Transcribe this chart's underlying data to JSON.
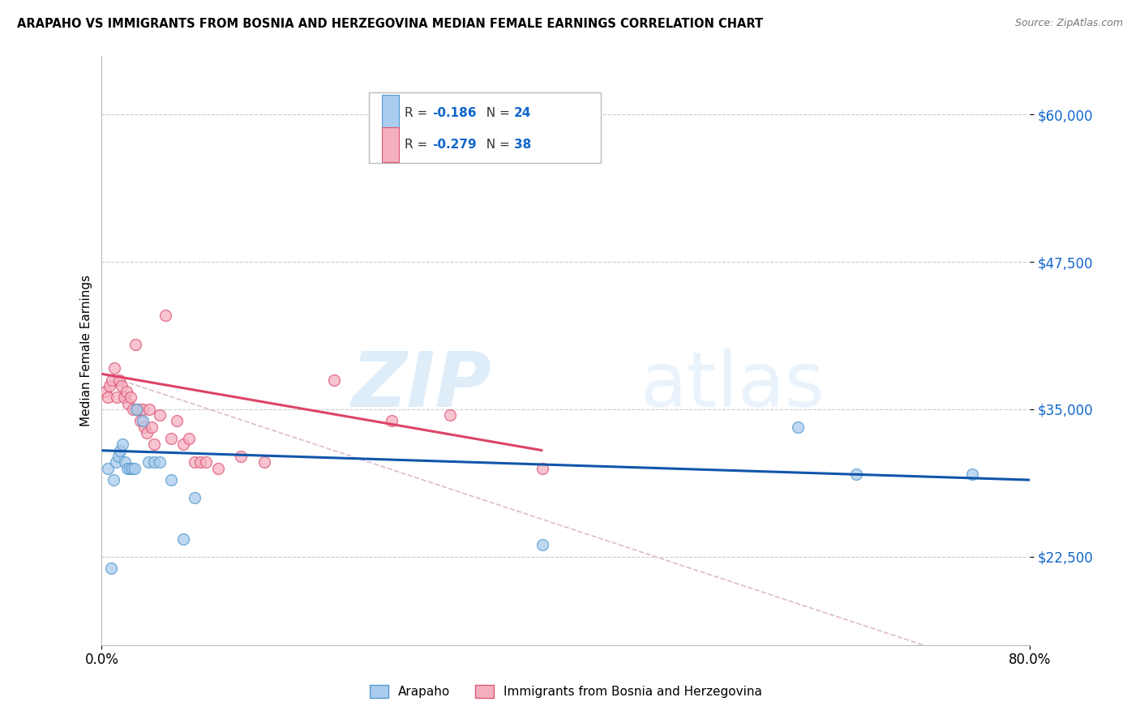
{
  "title": "ARAPAHO VS IMMIGRANTS FROM BOSNIA AND HERZEGOVINA MEDIAN FEMALE EARNINGS CORRELATION CHART",
  "source": "Source: ZipAtlas.com",
  "ylabel": "Median Female Earnings",
  "xlabel_ticks": [
    "0.0%",
    "80.0%"
  ],
  "ytick_labels": [
    "$22,500",
    "$35,000",
    "$47,500",
    "$60,000"
  ],
  "ytick_values": [
    22500,
    35000,
    47500,
    60000
  ],
  "ymin": 15000,
  "ymax": 65000,
  "xmin": 0.0,
  "xmax": 0.8,
  "watermark_zip": "ZIP",
  "watermark_atlas": "atlas",
  "arapaho_scatter": {
    "x": [
      0.005,
      0.008,
      0.01,
      0.012,
      0.014,
      0.016,
      0.018,
      0.02,
      0.022,
      0.024,
      0.026,
      0.028,
      0.03,
      0.035,
      0.04,
      0.045,
      0.05,
      0.06,
      0.07,
      0.08,
      0.38,
      0.6,
      0.65,
      0.75
    ],
    "y": [
      30000,
      21500,
      29000,
      30500,
      31000,
      31500,
      32000,
      30500,
      30000,
      30000,
      30000,
      30000,
      35000,
      34000,
      30500,
      30500,
      30500,
      29000,
      24000,
      27500,
      23500,
      33500,
      29500,
      29500
    ],
    "color": "#aaccee",
    "edgecolor": "#5599cc",
    "size": 100,
    "alpha": 0.75
  },
  "bosnia_scatter": {
    "x": [
      0.003,
      0.005,
      0.007,
      0.009,
      0.011,
      0.013,
      0.015,
      0.017,
      0.019,
      0.021,
      0.023,
      0.025,
      0.027,
      0.029,
      0.031,
      0.033,
      0.035,
      0.037,
      0.039,
      0.041,
      0.043,
      0.045,
      0.05,
      0.055,
      0.06,
      0.065,
      0.07,
      0.075,
      0.08,
      0.085,
      0.09,
      0.1,
      0.12,
      0.14,
      0.2,
      0.25,
      0.3,
      0.38
    ],
    "y": [
      36500,
      36000,
      37000,
      37500,
      38500,
      36000,
      37500,
      37000,
      36000,
      36500,
      35500,
      36000,
      35000,
      40500,
      35000,
      34000,
      35000,
      33500,
      33000,
      35000,
      33500,
      32000,
      34500,
      43000,
      32500,
      34000,
      32000,
      32500,
      30500,
      30500,
      30500,
      30000,
      31000,
      30500,
      37500,
      34000,
      34500,
      30000
    ],
    "color": "#f5b0c0",
    "edgecolor": "#dd5577",
    "size": 100,
    "alpha": 0.75
  },
  "arapaho_line": {
    "x": [
      0.0,
      0.8
    ],
    "y": [
      31500,
      29000
    ],
    "color": "#1155aa",
    "linewidth": 2.2
  },
  "bosnia_line": {
    "x": [
      0.0,
      0.38
    ],
    "y": [
      38000,
      31500
    ],
    "color": "#dd4466",
    "linewidth": 2.2
  },
  "dashed_ext": {
    "x": [
      0.0,
      0.8
    ],
    "y": [
      38000,
      12000
    ],
    "color": "#ddbbcc",
    "linewidth": 1.2,
    "linestyle": "--"
  },
  "leg_r1_color": "-0.186",
  "leg_r2_color": "-0.279",
  "leg_n1": "24",
  "leg_n2": "38",
  "legend_blue": "#aaccee",
  "legend_blue_edge": "#5599cc",
  "legend_pink": "#f5b0c0",
  "legend_pink_edge": "#dd5577",
  "text_blue": "#1166cc",
  "text_dark": "#333333"
}
